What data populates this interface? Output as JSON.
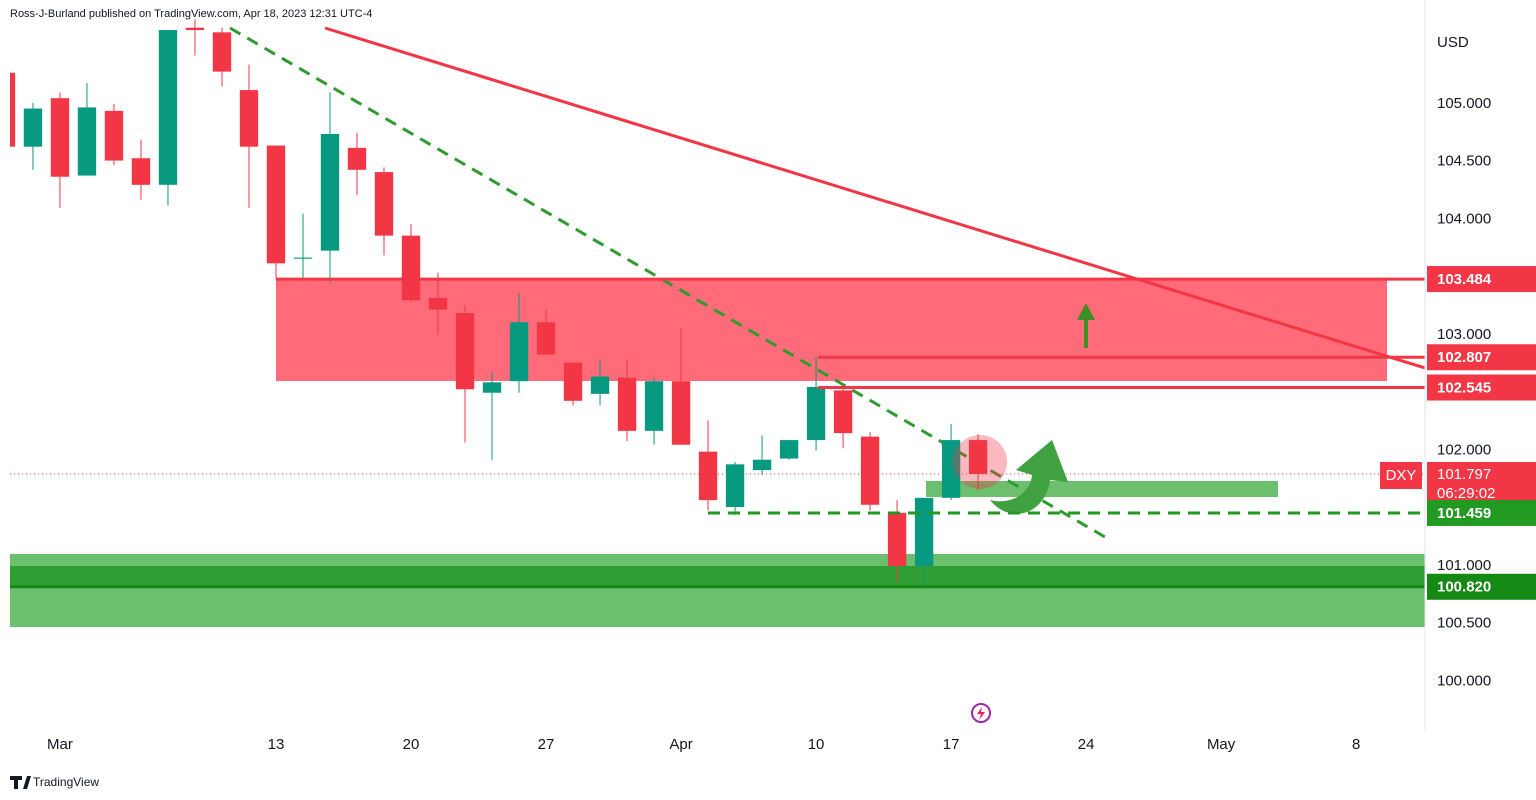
{
  "chart_data": {
    "type": "candlestick",
    "header": "Ross-J-Burland published on TradingView.com, Apr 18, 2023 12:31 UTC-4",
    "currency": "USD",
    "symbol": "DXY",
    "countdown": "06:29:02",
    "brand": "TradingView",
    "up_color": "#089981",
    "down_color": "#f23645",
    "x": [
      0,
      1,
      2,
      3,
      4,
      5,
      6,
      7,
      8,
      9,
      10,
      11,
      12,
      13,
      14,
      15,
      16,
      17,
      18,
      19,
      20,
      21,
      22,
      23,
      24,
      25,
      26,
      27,
      28,
      29,
      30,
      31,
      32,
      33,
      34,
      35,
      36
    ],
    "open": [
      105.27,
      104.63,
      105.05,
      104.38,
      104.94,
      104.53,
      104.3,
      105.66,
      105.62,
      105.12,
      104.64,
      103.66,
      103.73,
      104.62,
      104.41,
      103.86,
      103.32,
      103.19,
      102.5,
      102.6,
      103.11,
      102.76,
      102.49,
      102.63,
      102.17,
      102.6,
      101.99,
      101.51,
      101.83,
      101.93,
      102.09,
      102.52,
      102.12,
      101.46,
      101.0,
      101.59,
      102.09
    ],
    "high": [
      105.3,
      105.01,
      105.1,
      105.18,
      105.0,
      104.69,
      105.64,
      105.73,
      105.66,
      105.34,
      104.64,
      104.05,
      105.1,
      104.75,
      104.45,
      103.96,
      103.54,
      103.26,
      102.68,
      103.36,
      103.22,
      102.76,
      102.78,
      102.78,
      102.63,
      103.06,
      102.26,
      101.9,
      102.13,
      102.09,
      102.81,
      102.57,
      102.16,
      101.57,
      101.59,
      102.23,
      102.14
    ],
    "low": [
      104.63,
      104.43,
      104.1,
      104.38,
      104.47,
      104.17,
      104.12,
      105.42,
      105.15,
      104.1,
      103.49,
      103.49,
      103.45,
      104.21,
      103.69,
      103.28,
      103.0,
      102.07,
      101.92,
      102.5,
      102.83,
      102.39,
      102.39,
      102.08,
      102.05,
      102.05,
      101.48,
      101.44,
      101.79,
      101.92,
      102.0,
      102.02,
      101.48,
      100.86,
      100.81,
      101.57,
      101.66
    ],
    "close": [
      104.63,
      104.96,
      104.37,
      104.97,
      104.51,
      104.3,
      105.64,
      105.64,
      105.28,
      104.63,
      103.62,
      103.67,
      104.74,
      104.43,
      103.86,
      103.3,
      103.22,
      102.53,
      102.59,
      103.11,
      102.83,
      102.43,
      102.64,
      102.17,
      102.6,
      102.05,
      101.57,
      101.88,
      101.92,
      102.09,
      102.55,
      102.15,
      101.53,
      101.0,
      101.59,
      102.09,
      101.797
    ],
    "xlim": [
      0.15,
      52.55
    ],
    "xticks": [
      {
        "value": 2,
        "label": "Mar"
      },
      {
        "value": 10,
        "label": "13"
      },
      {
        "value": 15,
        "label": "20"
      },
      {
        "value": 20,
        "label": "27"
      },
      {
        "value": 25,
        "label": "Apr"
      },
      {
        "value": 30,
        "label": "10"
      },
      {
        "value": 35,
        "label": "17"
      },
      {
        "value": 40,
        "label": "24"
      },
      {
        "value": 45,
        "label": "May"
      },
      {
        "value": 50,
        "label": "8"
      }
    ],
    "ylim": [
      99.58,
      105.9
    ],
    "yticks": [
      {
        "value": 100,
        "label": "100.000"
      },
      {
        "value": 100.5,
        "label": "100.500"
      },
      {
        "value": 101,
        "label": "101.000"
      },
      {
        "value": 102,
        "label": "102.000"
      },
      {
        "value": 103,
        "label": "103.000"
      },
      {
        "value": 104,
        "label": "104.000"
      },
      {
        "value": 104.5,
        "label": "104.500"
      },
      {
        "value": 105,
        "label": "105.000"
      }
    ],
    "last_price": 101.797,
    "levels": [
      {
        "value": 103.484,
        "color": "#f23645",
        "dash": false
      },
      {
        "value": 102.807,
        "color": "#f23645",
        "dash": false
      },
      {
        "value": 102.545,
        "color": "#f23645",
        "dash": false
      },
      {
        "value": 101.459,
        "color": "#229a22",
        "dash": true
      },
      {
        "value": 100.82,
        "label": "100.820",
        "color": "#148a14",
        "dash": false
      }
    ]
  }
}
